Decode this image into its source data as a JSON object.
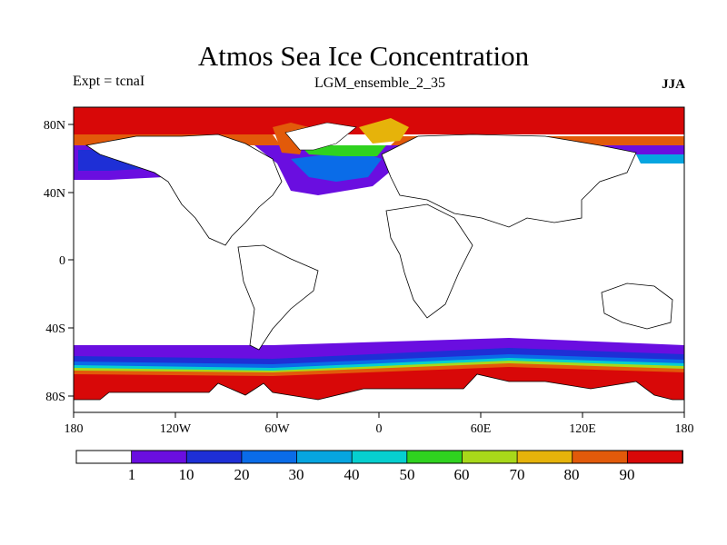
{
  "header": {
    "title": "Atmos Sea Ice Concentration",
    "left": "Expt = tcnaI",
    "center": "LGM_ensemble_2_35",
    "right": "JJA"
  },
  "axes": {
    "x_ticks": [
      "180",
      "120W",
      "60W",
      "0",
      "60E",
      "120E",
      "180"
    ],
    "y_ticks": [
      "80N",
      "40N",
      "0",
      "40S",
      "80S"
    ]
  },
  "colorbar": {
    "labels": [
      "1",
      "10",
      "20",
      "30",
      "40",
      "50",
      "60",
      "70",
      "80",
      "90"
    ],
    "colors": [
      "#ffffff",
      "#6a0ee0",
      "#1e2fd6",
      "#0a6ce8",
      "#06a5e0",
      "#06cfcf",
      "#2fd21f",
      "#a8d81a",
      "#e6b30a",
      "#e25a0a",
      "#d80808"
    ]
  },
  "chart_data": {
    "type": "heatmap",
    "title": "Atmos Sea Ice Concentration",
    "xlim": [
      -180,
      180
    ],
    "ylim": [
      -90,
      90
    ],
    "levels": [
      1,
      10,
      20,
      30,
      40,
      50,
      60,
      70,
      80,
      90
    ]
  }
}
